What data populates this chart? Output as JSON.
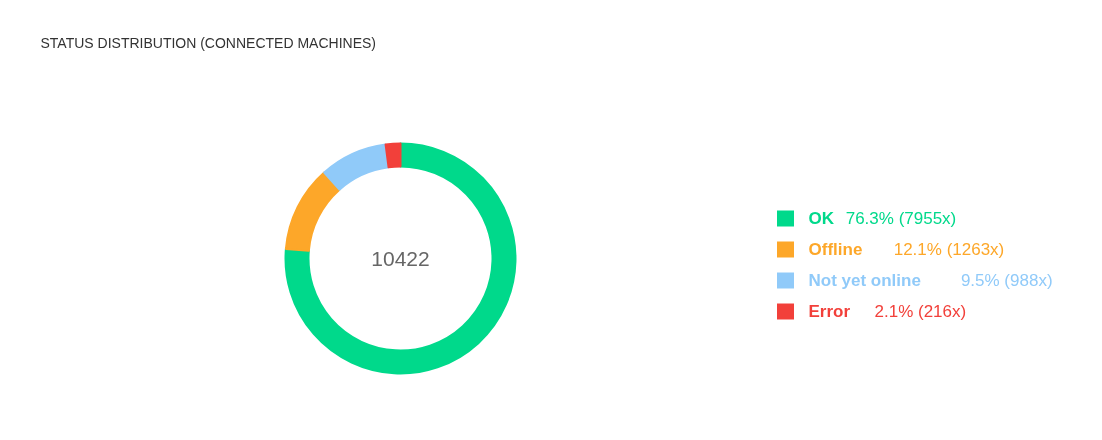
{
  "chart_data": {
    "type": "donut",
    "title": "STATUS DISTRIBUTION (CONNECTED MACHINES)",
    "categories": [
      "OK",
      "Offline",
      "Not yet online",
      "Error"
    ],
    "values": [
      7955,
      1263,
      988,
      216
    ],
    "colors": [
      "#00d98b",
      "#fda729",
      "#90caf9",
      "#f2403a"
    ],
    "value_labels": [
      "76.3%  (7955x)",
      "12.1%  (1263x)",
      "9.5%  (988x)",
      "2.1%  (216x)"
    ],
    "annotations": [
      "10422"
    ],
    "legend": "right"
  }
}
